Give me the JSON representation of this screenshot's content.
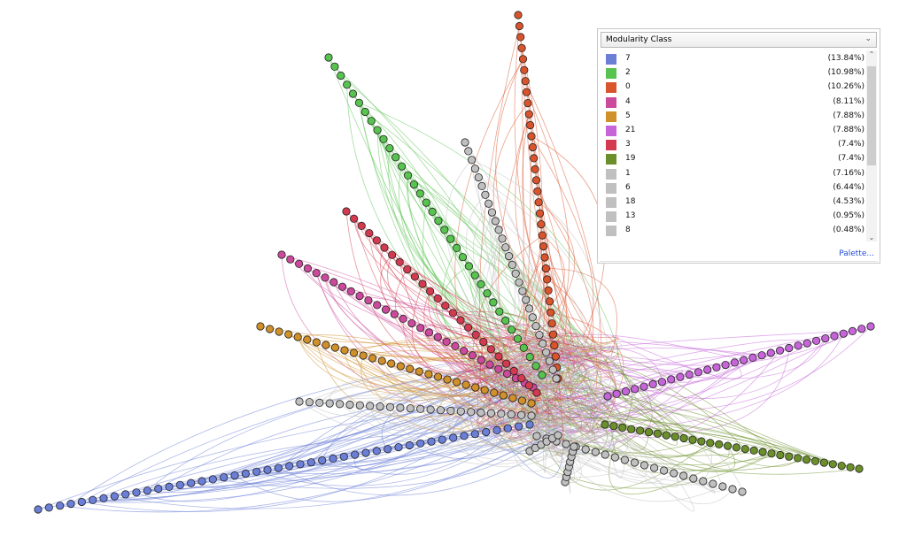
{
  "legend": {
    "selector_label": "Modularity Class",
    "palette_label": "Palette...",
    "items": [
      {
        "cls": "7",
        "pct": "(13.84%)",
        "color": "#6b7fd7"
      },
      {
        "cls": "2",
        "pct": "(10.98%)",
        "color": "#58c34f"
      },
      {
        "cls": "0",
        "pct": "(10.26%)",
        "color": "#d9542d"
      },
      {
        "cls": "4",
        "pct": "(8.11%)",
        "color": "#cc4a9c"
      },
      {
        "cls": "5",
        "pct": "(7.88%)",
        "color": "#d0902a"
      },
      {
        "cls": "21",
        "pct": "(7.88%)",
        "color": "#c565d8"
      },
      {
        "cls": "3",
        "pct": "(7.4%)",
        "color": "#d43a4f"
      },
      {
        "cls": "19",
        "pct": "(7.4%)",
        "color": "#6b8f2a"
      },
      {
        "cls": "1",
        "pct": "(7.16%)",
        "color": "#c0c0c0"
      },
      {
        "cls": "6",
        "pct": "(6.44%)",
        "color": "#c0c0c0"
      },
      {
        "cls": "18",
        "pct": "(4.53%)",
        "color": "#c0c0c0"
      },
      {
        "cls": "13",
        "pct": "(0.95%)",
        "color": "#c0c0c0"
      },
      {
        "cls": "8",
        "pct": "(0.48%)",
        "color": "#c0c0c0"
      }
    ]
  },
  "graph": {
    "arms": [
      {
        "cls": "7",
        "count": 46
      },
      {
        "cls": "2",
        "count": 36
      },
      {
        "cls": "0",
        "count": 34
      },
      {
        "cls": "4",
        "count": 30
      },
      {
        "cls": "5",
        "count": 30
      },
      {
        "cls": "21",
        "count": 30
      },
      {
        "cls": "3",
        "count": 26
      },
      {
        "cls": "19",
        "count": 30
      },
      {
        "cls": "1",
        "count": 28
      },
      {
        "cls": "6",
        "count": 24
      },
      {
        "cls": "18",
        "count": 22
      },
      {
        "cls": "13",
        "count": 8
      },
      {
        "cls": "8",
        "count": 6
      }
    ]
  }
}
